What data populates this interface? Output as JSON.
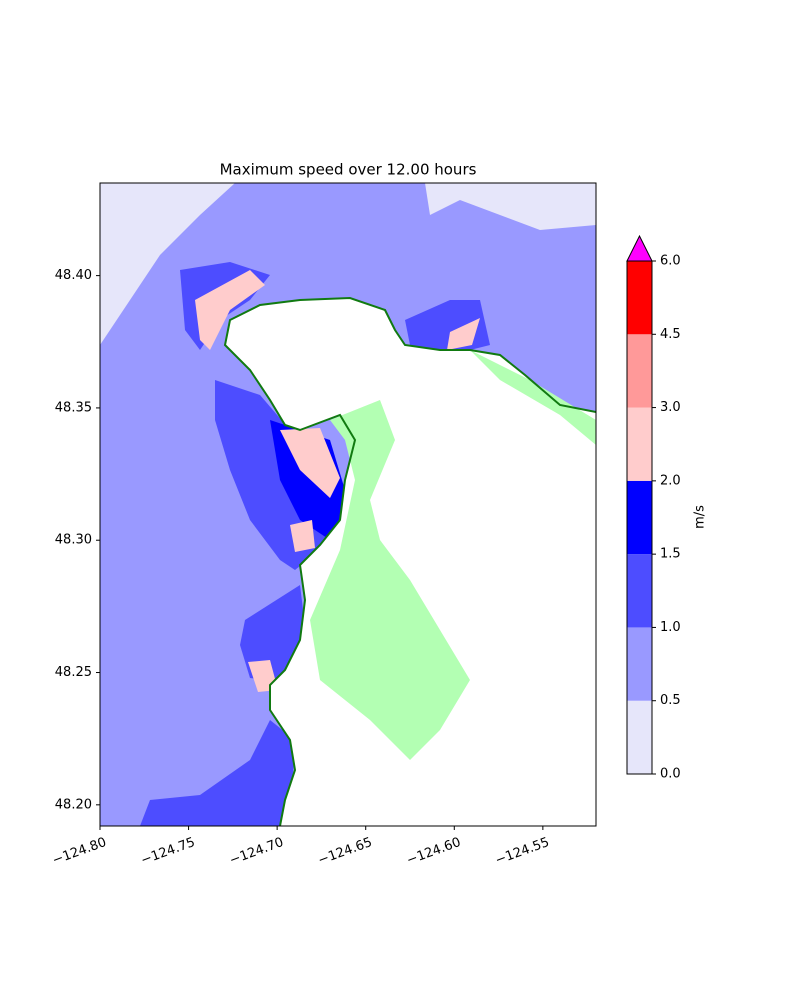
{
  "chart_data": {
    "type": "map",
    "title": "Maximum speed over 12.00 hours",
    "xlim": [
      -124.8,
      -124.52
    ],
    "ylim": [
      48.192,
      48.435
    ],
    "xticks": [
      {
        "value": -124.8,
        "label": "−124.80"
      },
      {
        "value": -124.75,
        "label": "−124.75"
      },
      {
        "value": -124.7,
        "label": "−124.70"
      },
      {
        "value": -124.65,
        "label": "−124.65"
      },
      {
        "value": -124.6,
        "label": "−124.60"
      },
      {
        "value": -124.55,
        "label": "−124.55"
      }
    ],
    "yticks": [
      {
        "value": 48.2,
        "label": "48.20"
      },
      {
        "value": 48.25,
        "label": "48.25"
      },
      {
        "value": 48.3,
        "label": "48.30"
      },
      {
        "value": 48.35,
        "label": "48.35"
      },
      {
        "value": 48.4,
        "label": "48.40"
      }
    ],
    "colorbar": {
      "label": "m/s",
      "levels": [
        {
          "value": 0,
          "label": "0.0"
        },
        {
          "value": 0.5,
          "label": "0.5"
        },
        {
          "value": 1,
          "label": "1.0"
        },
        {
          "value": 1.5,
          "label": "1.5"
        },
        {
          "value": 2,
          "label": "2.0"
        },
        {
          "value": 3,
          "label": "3.0"
        },
        {
          "value": 4.5,
          "label": "4.5"
        },
        {
          "value": 6,
          "label": "6.0"
        }
      ],
      "colors": [
        "#e6e6fa",
        "#9999ff",
        "#4d4dff",
        "#0000ff",
        "#ffcccc",
        "#ff9999",
        "#ff0000"
      ],
      "extend_color": "#ff00ff"
    }
  }
}
